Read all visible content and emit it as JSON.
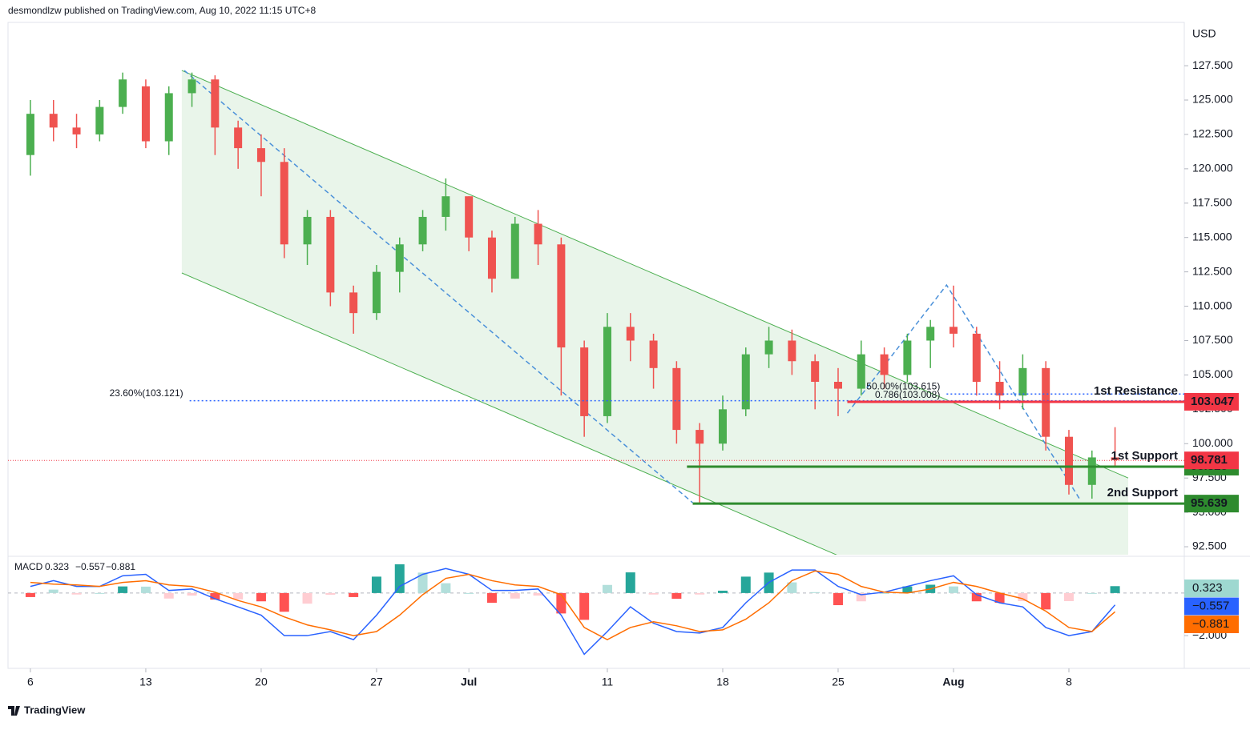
{
  "header": "desmondlzw published on TradingView.com, Aug 10, 2022 11:15 UTC+8",
  "footer": "TradingView",
  "chart_data": [
    {
      "type": "candlestick",
      "currency": "USD",
      "x": [
        0,
        1,
        2,
        3,
        4,
        5,
        6,
        7,
        8,
        9,
        10,
        11,
        12,
        13,
        14,
        15,
        16,
        17,
        18,
        19,
        20,
        21,
        22,
        23,
        24,
        25,
        26,
        27,
        28,
        29,
        30,
        31,
        32,
        33,
        34,
        35,
        36,
        37,
        38,
        39,
        40,
        41,
        42,
        43,
        44,
        45,
        46,
        47
      ],
      "open": [
        121,
        124,
        123,
        122.5,
        124.5,
        126,
        122,
        125.5,
        126.5,
        123,
        121.5,
        120.5,
        114.5,
        116.5,
        111,
        109.5,
        112.5,
        114.5,
        116.5,
        118,
        115,
        112,
        116,
        114.5,
        107,
        102,
        108.5,
        107.5,
        105.5,
        101,
        100,
        102.5,
        106.5,
        107.5,
        106,
        104.5,
        104,
        106.5,
        105,
        107.5,
        108.5,
        108,
        104.5,
        103.5,
        105.5,
        100.5,
        97,
        99
      ],
      "high": [
        125,
        125,
        124,
        125,
        127,
        126.5,
        126,
        127,
        126.8,
        123.5,
        122.5,
        121.5,
        117,
        117,
        111.5,
        113,
        115,
        117,
        119.3,
        118,
        115.5,
        116.5,
        117,
        115,
        107.5,
        109.5,
        109.5,
        108,
        106,
        101.5,
        103.5,
        107,
        108.5,
        108.3,
        106.5,
        105.5,
        107.5,
        107,
        108,
        109,
        111.5,
        108.5,
        106,
        106.5,
        106,
        101,
        99.5,
        101.2
      ],
      "low": [
        119.5,
        122,
        121.5,
        122,
        124,
        121.5,
        121,
        124.5,
        121,
        120,
        118,
        113.5,
        113,
        110,
        108,
        109,
        111,
        114,
        115.5,
        114,
        111,
        112,
        113,
        103.5,
        100.5,
        101.5,
        106,
        104,
        100,
        95.6,
        99.5,
        102,
        105.5,
        105,
        102.5,
        102,
        103.5,
        104,
        104.5,
        105.5,
        107,
        103.5,
        102.5,
        102.5,
        99.5,
        96.3,
        96,
        98.3
      ],
      "close": [
        124,
        123,
        122.5,
        124.5,
        126.5,
        122,
        125.5,
        126.5,
        123,
        121.5,
        120.5,
        114.5,
        116.5,
        111,
        109.5,
        112.5,
        114.5,
        116.5,
        118,
        115,
        112,
        116,
        114.5,
        107,
        102,
        108.5,
        107.5,
        105.5,
        101,
        100,
        102.5,
        106.5,
        107.5,
        106,
        104.5,
        104,
        106.5,
        105,
        107.5,
        108.5,
        108,
        104.5,
        103.5,
        105.5,
        100.5,
        97,
        99,
        98.8
      ],
      "up_color": "#4caf50",
      "down_color": "#ef5350",
      "xlim": [
        -0.97,
        50
      ],
      "xticks": [
        {
          "value": 0,
          "label": "6"
        },
        {
          "value": 5,
          "label": "13"
        },
        {
          "value": 10,
          "label": "20"
        },
        {
          "value": 15,
          "label": "27"
        },
        {
          "value": 19,
          "label": "Jul"
        },
        {
          "value": 25,
          "label": "11"
        },
        {
          "value": 30,
          "label": "18"
        },
        {
          "value": 35,
          "label": "25"
        },
        {
          "value": 40,
          "label": "Aug"
        },
        {
          "value": 45,
          "label": "8"
        }
      ],
      "ylim": [
        91.92,
        130.65
      ],
      "yticks": [
        {
          "value": 92.5,
          "label": "92.500"
        },
        {
          "value": 95,
          "label": "95.000"
        },
        {
          "value": 97.5,
          "label": "97.500"
        },
        {
          "value": 100,
          "label": "100.000"
        },
        {
          "value": 102.5,
          "label": "102.500"
        },
        {
          "value": 105,
          "label": "105.000"
        },
        {
          "value": 107.5,
          "label": "107.500"
        },
        {
          "value": 110,
          "label": "110.000"
        },
        {
          "value": 112.5,
          "label": "112.500"
        },
        {
          "value": 115,
          "label": "115.000"
        },
        {
          "value": 117.5,
          "label": "117.500"
        },
        {
          "value": 120,
          "label": "120.000"
        },
        {
          "value": 122.5,
          "label": "122.500"
        },
        {
          "value": 125,
          "label": "125.000"
        },
        {
          "value": 127.5,
          "label": "127.500"
        }
      ],
      "channel": {
        "x": [
          6.56,
          47.57
        ],
        "upper": [
          127.15,
          97.5
        ],
        "lower": [
          112.42,
          82.77
        ],
        "color": "#4caf50"
      },
      "trendlines": [
        {
          "x": [
            6.67,
            28.7
          ],
          "y": [
            127.15,
            95.7
          ],
          "color": "#4a90d9"
        },
        {
          "x": [
            35.4,
            39.7,
            45.5
          ],
          "y": [
            102.22,
            111.54,
            95.88
          ],
          "color": "#4a90d9"
        }
      ],
      "levels": [
        {
          "value": 103.121,
          "label": "23.60%(103.121)",
          "from": 6.9,
          "style": "dotted",
          "color": "#2962ff",
          "label_pos": "left"
        },
        {
          "value": 103.615,
          "label": "50.00%(103.615)",
          "from": 39.7,
          "style": "dotted",
          "color": "#2962ff",
          "label_pos": "left"
        },
        {
          "value": 103.008,
          "label": "0.786(103.008)",
          "from": 39.7,
          "style": "dotted",
          "color": "#2962ff",
          "label_pos": "left"
        },
        {
          "value": 103.047,
          "label": "1st Resistance",
          "from": 35.4,
          "style": "solid",
          "color": "#f23645",
          "label_pos": "right",
          "axis_label": true
        },
        {
          "value": 98.328,
          "label": "1st Support",
          "from": 28.45,
          "style": "solid",
          "color": "#2e8b2e",
          "label_pos": "right",
          "axis_label": true
        },
        {
          "value": 95.639,
          "label": "2nd Support",
          "from": 28.7,
          "style": "solid",
          "color": "#2e8b2e",
          "label_pos": "right",
          "axis_label": true
        }
      ],
      "last_price": 98.781,
      "last_price_color": "#f23645"
    },
    {
      "type": "macd",
      "title": "MACD",
      "ylim": [
        -3.54,
        1.65
      ],
      "yticks": [
        {
          "value": -2,
          "label": "−2.000"
        }
      ],
      "hist_colors": [
        "#26a69a",
        "#b2dfdb",
        "#ff5252",
        "#ffcdd2"
      ],
      "series": [
        {
          "color": "#9ed8d0",
          "last_label": "0.323",
          "values": [
            -0.19,
            0.16,
            -0.07,
            0,
            0.31,
            0.3,
            -0.26,
            -0.12,
            -0.31,
            -0.3,
            -0.39,
            -0.88,
            -0.5,
            -0.08,
            -0.19,
            0.77,
            1.35,
            0.96,
            0.46,
            0,
            -0.46,
            -0.26,
            -0.12,
            -0.96,
            -1.26,
            0.38,
            0.97,
            -0.07,
            -0.27,
            -0.07,
            0.11,
            0.77,
            0.96,
            0.5,
            0.04,
            -0.57,
            -0.39,
            0,
            0.31,
            0.39,
            0.31,
            -0.39,
            -0.46,
            -0.38,
            -0.77,
            -0.38,
            0,
            0.323
          ]
        },
        {
          "color": "#2962ff",
          "last_label": "−0.557",
          "values": [
            0.31,
            0.58,
            0.31,
            0.31,
            0.81,
            0.88,
            0.12,
            0.19,
            -0.27,
            -0.65,
            -1.04,
            -2,
            -2,
            -1.81,
            -2.19,
            -1.04,
            0.31,
            0.88,
            1.15,
            0.88,
            0.12,
            0.12,
            0.19,
            -1.04,
            -2.88,
            -1.81,
            -0.65,
            -1.42,
            -1.81,
            -1.88,
            -1.62,
            -0.46,
            0.5,
            1.08,
            1.08,
            0.31,
            -0.08,
            0.04,
            0.31,
            0.58,
            0.81,
            -0.08,
            -0.46,
            -0.65,
            -1.62,
            -2,
            -1.81,
            -0.557
          ]
        },
        {
          "color": "#ff6d00",
          "last_label": "−0.881",
          "values": [
            0.5,
            0.42,
            0.38,
            0.31,
            0.5,
            0.58,
            0.38,
            0.31,
            0.04,
            -0.35,
            -0.65,
            -1.12,
            -1.5,
            -1.73,
            -2,
            -1.81,
            -1.04,
            -0.08,
            0.69,
            0.88,
            0.58,
            0.38,
            0.31,
            -0.08,
            -1.62,
            -2.19,
            -1.62,
            -1.35,
            -1.54,
            -1.81,
            -1.73,
            -1.23,
            -0.46,
            0.58,
            1.04,
            0.88,
            0.31,
            0.04,
            0,
            0.19,
            0.5,
            0.31,
            0,
            -0.27,
            -0.85,
            -1.62,
            -1.81,
            -0.881
          ]
        }
      ]
    }
  ]
}
